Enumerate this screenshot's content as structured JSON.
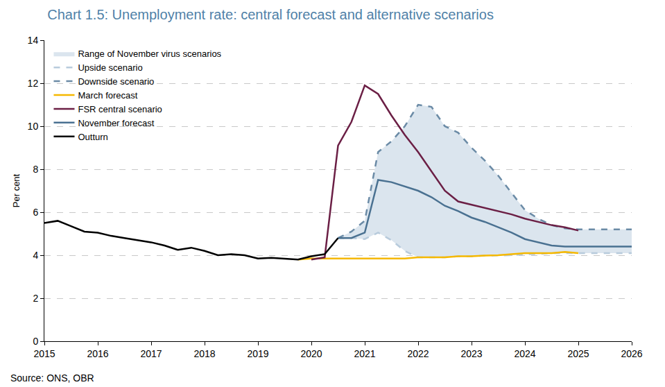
{
  "chart_data": {
    "type": "line",
    "title": "Chart 1.5: Unemployment rate: central forecast and alternative scenarios",
    "y_label": "Per cent",
    "source": "Source: ONS, OBR",
    "x": [
      2015,
      2015.25,
      2015.5,
      2015.75,
      2016,
      2016.25,
      2016.5,
      2016.75,
      2017,
      2017.25,
      2017.5,
      2017.75,
      2018,
      2018.25,
      2018.5,
      2018.75,
      2019,
      2019.25,
      2019.5,
      2019.75,
      2020,
      2020.25,
      2020.5,
      2020.75,
      2021,
      2021.25,
      2021.5,
      2021.75,
      2022,
      2022.25,
      2022.5,
      2022.75,
      2023,
      2023.25,
      2023.5,
      2023.75,
      2024,
      2024.25,
      2024.5,
      2024.75,
      2025,
      2025.25,
      2025.5,
      2025.75,
      2026
    ],
    "xlim": [
      2015,
      2026
    ],
    "xticks": [
      2015,
      2016,
      2017,
      2018,
      2019,
      2020,
      2021,
      2022,
      2023,
      2024,
      2025,
      2026
    ],
    "ylim": [
      0,
      14
    ],
    "yticks": [
      0,
      2,
      4,
      6,
      8,
      10,
      12,
      14
    ],
    "grid": true,
    "legend": "top-left",
    "series": [
      {
        "name": "Range of November virus scenarios",
        "type": "area",
        "color": "#dbe5ee"
      },
      {
        "name": "Upside scenario",
        "color": "#b8cbdc",
        "line_style": "dash",
        "values": [
          null,
          null,
          null,
          null,
          null,
          null,
          null,
          null,
          null,
          null,
          null,
          null,
          null,
          null,
          null,
          null,
          null,
          null,
          null,
          null,
          null,
          null,
          4.8,
          4.8,
          4.75,
          5.05,
          4.7,
          4.2,
          3.9,
          3.9,
          3.9,
          3.95,
          3.95,
          3.98,
          4.0,
          4.0,
          4.05,
          4.05,
          4.1,
          4.1,
          4.1,
          4.1,
          4.1,
          4.1,
          4.1
        ]
      },
      {
        "name": "Downside scenario",
        "color": "#6b8ba6",
        "line_style": "dash",
        "values": [
          null,
          null,
          null,
          null,
          null,
          null,
          null,
          null,
          null,
          null,
          null,
          null,
          null,
          null,
          null,
          null,
          null,
          null,
          null,
          null,
          null,
          null,
          4.8,
          5.1,
          5.6,
          8.8,
          9.3,
          10.0,
          11.0,
          10.9,
          10.0,
          9.7,
          9.0,
          8.4,
          7.7,
          6.9,
          6.1,
          5.7,
          5.4,
          5.25,
          5.2,
          5.2,
          5.2,
          5.2,
          5.2
        ]
      },
      {
        "name": "March forecast",
        "color": "#f5b800",
        "line_style": "solid",
        "values": [
          null,
          null,
          null,
          null,
          null,
          null,
          null,
          null,
          null,
          null,
          null,
          null,
          null,
          null,
          null,
          null,
          null,
          null,
          null,
          3.8,
          3.85,
          3.85,
          3.85,
          3.85,
          3.85,
          3.85,
          3.85,
          3.85,
          3.9,
          3.9,
          3.9,
          3.95,
          3.95,
          3.98,
          4.0,
          4.05,
          4.1,
          4.1,
          4.1,
          4.15,
          4.1,
          null,
          null,
          null,
          null
        ]
      },
      {
        "name": "FSR central scenario",
        "color": "#6b1f45",
        "line_style": "solid",
        "values": [
          null,
          null,
          null,
          null,
          null,
          null,
          null,
          null,
          null,
          null,
          null,
          null,
          null,
          null,
          null,
          null,
          null,
          null,
          null,
          null,
          3.8,
          3.9,
          9.1,
          10.2,
          11.9,
          11.5,
          10.5,
          9.6,
          8.8,
          7.9,
          7.0,
          6.5,
          6.35,
          6.2,
          6.05,
          5.9,
          5.7,
          5.55,
          5.4,
          5.3,
          5.15,
          null,
          null,
          null,
          null
        ]
      },
      {
        "name": "November forecast",
        "color": "#4a7191",
        "line_style": "solid",
        "values": [
          null,
          null,
          null,
          null,
          null,
          null,
          null,
          null,
          null,
          null,
          null,
          null,
          null,
          null,
          null,
          null,
          null,
          null,
          null,
          null,
          null,
          null,
          4.8,
          4.8,
          5.05,
          7.5,
          7.4,
          7.2,
          7.0,
          6.7,
          6.3,
          6.05,
          5.75,
          5.55,
          5.3,
          5.05,
          4.75,
          4.6,
          4.45,
          4.4,
          4.4,
          4.4,
          4.4,
          4.4,
          4.4
        ]
      },
      {
        "name": "Outturn",
        "color": "#000000",
        "line_style": "solid",
        "values": [
          5.5,
          5.6,
          5.35,
          5.1,
          5.05,
          4.9,
          4.8,
          4.7,
          4.6,
          4.45,
          4.25,
          4.35,
          4.2,
          4.0,
          4.05,
          4.0,
          3.85,
          3.88,
          3.85,
          3.8,
          3.95,
          4.05,
          4.8,
          null,
          null,
          null,
          null,
          null,
          null,
          null,
          null,
          null,
          null,
          null,
          null,
          null,
          null,
          null,
          null,
          null,
          null,
          null,
          null,
          null,
          null
        ]
      }
    ]
  }
}
